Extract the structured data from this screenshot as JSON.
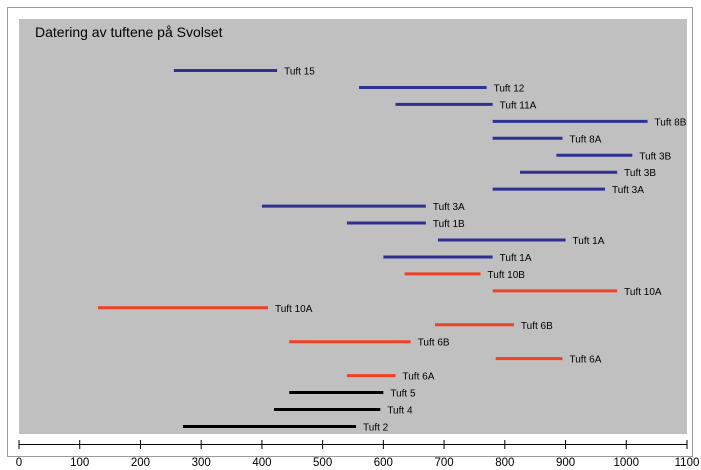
{
  "chart_data": {
    "type": "range_bar",
    "title": "Datering av tuftene på Svolset",
    "xlabel": "",
    "ylabel": "",
    "xlim": [
      0,
      1100
    ],
    "xticks": [
      0,
      100,
      200,
      300,
      400,
      500,
      600,
      700,
      800,
      900,
      1000,
      1100
    ],
    "grid": false,
    "legend": "none",
    "colors": {
      "blue": "#2e3192",
      "red": "#ef4123",
      "black": "#000000",
      "plot_bg": "#c0c0c0"
    },
    "bars": [
      {
        "label": "Tuft 15",
        "start": 255,
        "end": 425,
        "color": "blue"
      },
      {
        "label": "Tuft 12",
        "start": 560,
        "end": 770,
        "color": "blue"
      },
      {
        "label": "Tuft 11A",
        "start": 620,
        "end": 780,
        "color": "blue"
      },
      {
        "label": "Tuft 8B",
        "start": 780,
        "end": 1035,
        "color": "blue"
      },
      {
        "label": "Tuft 8A",
        "start": 780,
        "end": 895,
        "color": "blue"
      },
      {
        "label": "Tuft 3B",
        "start": 885,
        "end": 1010,
        "color": "blue"
      },
      {
        "label": "Tuft 3B",
        "start": 825,
        "end": 985,
        "color": "blue"
      },
      {
        "label": "Tuft 3A",
        "start": 780,
        "end": 965,
        "color": "blue"
      },
      {
        "label": "Tuft 3A",
        "start": 400,
        "end": 670,
        "color": "blue"
      },
      {
        "label": "Tuft 1B",
        "start": 540,
        "end": 670,
        "color": "blue"
      },
      {
        "label": "Tuft 1A",
        "start": 690,
        "end": 900,
        "color": "blue"
      },
      {
        "label": "Tuft 1A",
        "start": 600,
        "end": 780,
        "color": "blue"
      },
      {
        "label": "Tuft 10B",
        "start": 635,
        "end": 760,
        "color": "red"
      },
      {
        "label": "Tuft 10A",
        "start": 780,
        "end": 985,
        "color": "red"
      },
      {
        "label": "Tuft 10A",
        "start": 130,
        "end": 410,
        "color": "red"
      },
      {
        "label": "Tuft 6B",
        "start": 685,
        "end": 815,
        "color": "red"
      },
      {
        "label": "Tuft 6B",
        "start": 445,
        "end": 645,
        "color": "red"
      },
      {
        "label": "Tuft 6A",
        "start": 785,
        "end": 895,
        "color": "red"
      },
      {
        "label": "Tuft 6A",
        "start": 540,
        "end": 620,
        "color": "red"
      },
      {
        "label": "Tuft 5",
        "start": 445,
        "end": 600,
        "color": "black"
      },
      {
        "label": "Tuft 4",
        "start": 420,
        "end": 595,
        "color": "black"
      },
      {
        "label": "Tuft 2",
        "start": 270,
        "end": 555,
        "color": "black"
      }
    ]
  }
}
